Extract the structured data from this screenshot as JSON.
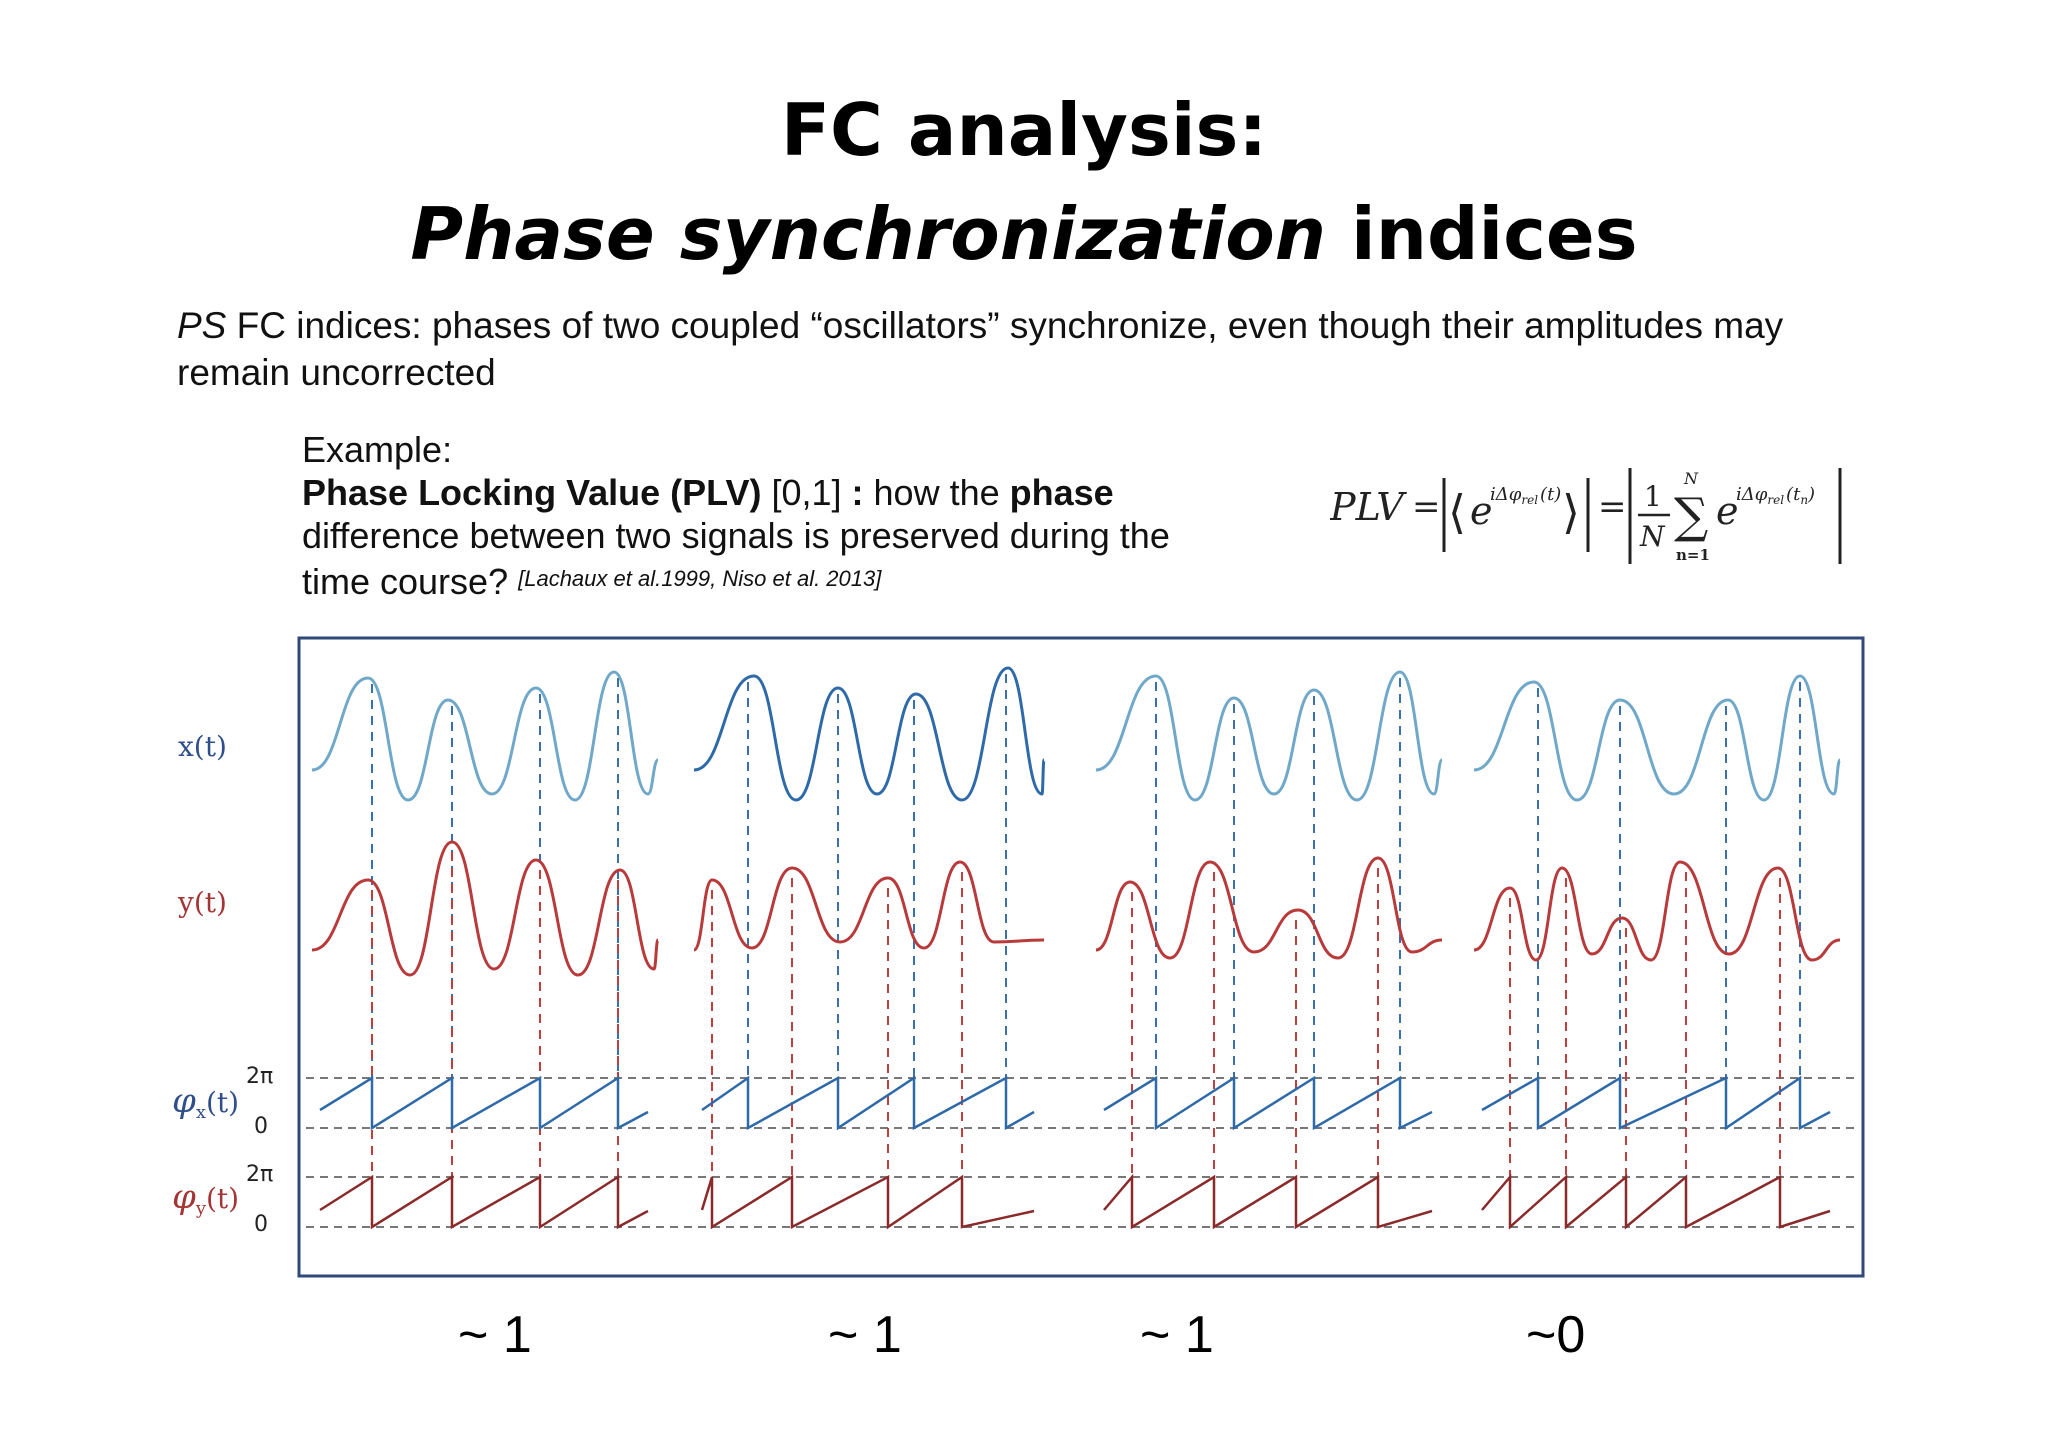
{
  "slide": {
    "title_line1": "FC analysis:",
    "title_line2_italic": "Phase synchronization",
    "title_line2_rest": " indices",
    "intro_italic": "PS",
    "intro_rest": " FC indices: phases of two coupled “oscillators” synchronize, even though their amplitudes may remain uncorrected",
    "example_heading": "Example:",
    "example_bold": "Phase Locking Value (PLV)",
    "example_range": " [0,1] ",
    "example_colon": ":",
    "example_text1": " how the ",
    "example_bold2": "phase",
    "example_text2": " difference between two signals is preserved during the time course?",
    "citation": "[Lachaux et al.1999, Niso et al. 2013]",
    "formula": {
      "lhs": "PLV",
      "eq": "=",
      "bracket_left": "⟨",
      "bracket_right": "⟩",
      "base": "e",
      "exp": "iΔφ",
      "exp_sub": "rel",
      "exp_arg": "(t)",
      "exp_arg2": "(t",
      "exp_arg2_sub": "n",
      "exp_arg2_close": ")",
      "one": "1",
      "N": "N",
      "sum": "∑",
      "sum_top": "N",
      "sum_bottom": "n=1"
    }
  },
  "diagram": {
    "signal_labels": {
      "x": "x(t)",
      "y": "y(t)",
      "phi_symbol": "φ",
      "phi_x_sub": "x",
      "phi_y_sub": "y",
      "phi_arg": "(t)"
    },
    "axis_ticks": [
      "2π",
      "0",
      "2π",
      "0"
    ],
    "panels": [
      {
        "plv_label": "~ 1"
      },
      {
        "plv_label": "~ 1"
      },
      {
        "plv_label": "~ 1"
      },
      {
        "plv_label": "~0"
      }
    ],
    "colors": {
      "x_signal": "#2f6aa8",
      "x_signal_light": "#6fa8c8",
      "y_signal": "#b83a3a",
      "frame": "#2f4a7a",
      "dashed_x": "#3c6fb0",
      "dashed_y": "#c04040",
      "ref_line": "#777777"
    }
  }
}
